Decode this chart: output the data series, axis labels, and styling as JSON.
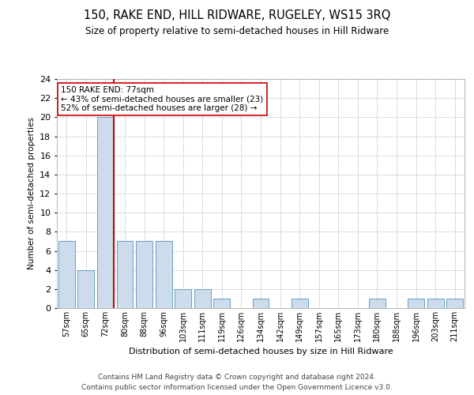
{
  "title": "150, RAKE END, HILL RIDWARE, RUGELEY, WS15 3RQ",
  "subtitle": "Size of property relative to semi-detached houses in Hill Ridware",
  "xlabel": "Distribution of semi-detached houses by size in Hill Ridware",
  "ylabel": "Number of semi-detached properties",
  "categories": [
    "57sqm",
    "65sqm",
    "72sqm",
    "80sqm",
    "88sqm",
    "96sqm",
    "103sqm",
    "111sqm",
    "119sqm",
    "126sqm",
    "134sqm",
    "142sqm",
    "149sqm",
    "157sqm",
    "165sqm",
    "173sqm",
    "180sqm",
    "188sqm",
    "196sqm",
    "203sqm",
    "211sqm"
  ],
  "values": [
    7,
    4,
    20,
    7,
    7,
    7,
    2,
    2,
    1,
    0,
    1,
    0,
    1,
    0,
    0,
    0,
    1,
    0,
    1,
    1,
    1
  ],
  "bar_color": "#cddcec",
  "bar_edge_color": "#6a9fc0",
  "vline_index": 2,
  "vline_color": "#cc0000",
  "annotation_text": "150 RAKE END: 77sqm\n← 43% of semi-detached houses are smaller (23)\n52% of semi-detached houses are larger (28) →",
  "annotation_box_facecolor": "#ffffff",
  "annotation_box_edgecolor": "#cc0000",
  "ylim": [
    0,
    24
  ],
  "yticks": [
    0,
    2,
    4,
    6,
    8,
    10,
    12,
    14,
    16,
    18,
    20,
    22,
    24
  ],
  "footer_line1": "Contains HM Land Registry data © Crown copyright and database right 2024.",
  "footer_line2": "Contains public sector information licensed under the Open Government Licence v3.0.",
  "background_color": "#ffffff",
  "grid_color": "#d0d8e0"
}
